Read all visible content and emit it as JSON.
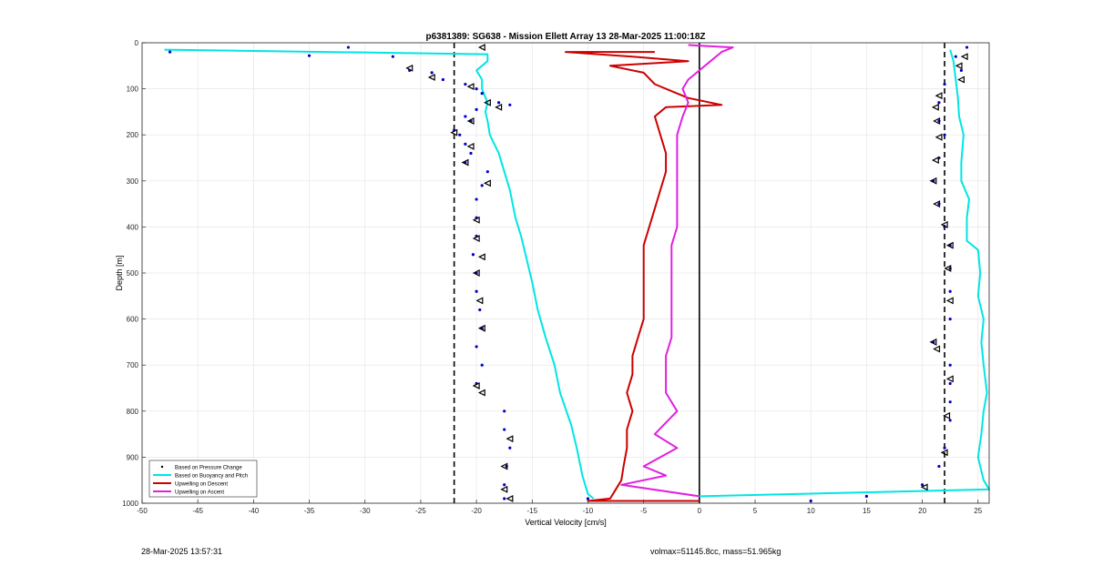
{
  "chart_data": {
    "type": "line",
    "title": "p6381389: SG638 - Mission Ellett Array 13 28-Mar-2025 11:00:18Z",
    "xlabel": "Vertical Velocity [cm/s]",
    "ylabel": "Depth [m]",
    "xlim": [
      -50,
      26
    ],
    "ylim": [
      0,
      1000
    ],
    "y_reversed": true,
    "grid": true,
    "xticks": [
      -50,
      -45,
      -40,
      -35,
      -30,
      -25,
      -20,
      -15,
      -10,
      -5,
      0,
      5,
      10,
      15,
      20,
      25
    ],
    "yticks": [
      0,
      100,
      200,
      300,
      400,
      500,
      600,
      700,
      800,
      900,
      1000
    ],
    "reference_lines": [
      {
        "x": -22,
        "style": "dashed",
        "color": "#000000"
      },
      {
        "x": 22,
        "style": "dashed",
        "color": "#000000"
      },
      {
        "x": 0,
        "style": "solid",
        "color": "#000000"
      }
    ],
    "legend": {
      "placement": "bottom-left",
      "entries": [
        {
          "label": "Based on Pressure Change",
          "color": "#000000",
          "kind": "dot"
        },
        {
          "label": "Based on Buoyancy and Pitch",
          "color": "#00e5e5",
          "kind": "line"
        },
        {
          "label": "Upwelling on Descent",
          "color": "#cc0000",
          "kind": "line"
        },
        {
          "label": "Upwelling on Ascent",
          "color": "#e020e0",
          "kind": "line"
        }
      ]
    },
    "series": [
      {
        "name": "Based on Buoyancy and Pitch",
        "color": "#00e5e5",
        "profile": "descent",
        "points": [
          [
            -48,
            15
          ],
          [
            -19,
            25
          ],
          [
            -19,
            40
          ],
          [
            -20,
            60
          ],
          [
            -19.5,
            80
          ],
          [
            -19.5,
            100
          ],
          [
            -19,
            130
          ],
          [
            -19.2,
            150
          ],
          [
            -19,
            170
          ],
          [
            -18.8,
            200
          ],
          [
            -18,
            240
          ],
          [
            -17.5,
            280
          ],
          [
            -17,
            320
          ],
          [
            -16.5,
            380
          ],
          [
            -16,
            420
          ],
          [
            -15.5,
            470
          ],
          [
            -15,
            520
          ],
          [
            -14.5,
            580
          ],
          [
            -13.8,
            640
          ],
          [
            -13,
            700
          ],
          [
            -12.5,
            760
          ],
          [
            -11.5,
            830
          ],
          [
            -11,
            880
          ],
          [
            -10.5,
            940
          ],
          [
            -10,
            980
          ],
          [
            -9.5,
            990
          ]
        ]
      },
      {
        "name": "Based on Buoyancy and Pitch",
        "color": "#00e5e5",
        "profile": "ascent",
        "points": [
          [
            0,
            985
          ],
          [
            26,
            970
          ],
          [
            25.5,
            950
          ],
          [
            25,
            900
          ],
          [
            25.3,
            850
          ],
          [
            25.5,
            800
          ],
          [
            25.8,
            760
          ],
          [
            25.5,
            700
          ],
          [
            25.3,
            650
          ],
          [
            25.5,
            600
          ],
          [
            25,
            550
          ],
          [
            25.2,
            500
          ],
          [
            25,
            450
          ],
          [
            24,
            430
          ],
          [
            24,
            380
          ],
          [
            24.2,
            340
          ],
          [
            23.5,
            300
          ],
          [
            23.5,
            260
          ],
          [
            23.7,
            200
          ],
          [
            23.3,
            160
          ],
          [
            23.2,
            120
          ],
          [
            23,
            80
          ],
          [
            22.8,
            40
          ],
          [
            22.5,
            15
          ]
        ]
      },
      {
        "name": "Upwelling on Descent",
        "color": "#cc0000",
        "points": [
          [
            -4,
            20
          ],
          [
            -12,
            20
          ],
          [
            -6,
            30
          ],
          [
            -1,
            40
          ],
          [
            -8,
            50
          ],
          [
            -5,
            65
          ],
          [
            -4,
            90
          ],
          [
            -2,
            110
          ],
          [
            -1,
            120
          ],
          [
            2,
            135
          ],
          [
            -3,
            140
          ],
          [
            -4,
            160
          ],
          [
            -3.5,
            200
          ],
          [
            -3,
            240
          ],
          [
            -3,
            280
          ],
          [
            -3.5,
            320
          ],
          [
            -4,
            360
          ],
          [
            -4.5,
            400
          ],
          [
            -5,
            440
          ],
          [
            -5,
            480
          ],
          [
            -5,
            520
          ],
          [
            -5,
            560
          ],
          [
            -5,
            600
          ],
          [
            -5.5,
            640
          ],
          [
            -6,
            680
          ],
          [
            -6,
            720
          ],
          [
            -6.5,
            760
          ],
          [
            -6,
            800
          ],
          [
            -6.5,
            840
          ],
          [
            -6.5,
            880
          ],
          [
            -6.8,
            920
          ],
          [
            -7,
            950
          ],
          [
            -7.5,
            970
          ],
          [
            -8,
            990
          ],
          [
            -10,
            995
          ],
          [
            0,
            995
          ]
        ]
      },
      {
        "name": "Upwelling on Ascent",
        "color": "#e020e0",
        "points": [
          [
            0,
            985
          ],
          [
            -7,
            960
          ],
          [
            -3,
            940
          ],
          [
            -5,
            920
          ],
          [
            -2,
            880
          ],
          [
            -4,
            850
          ],
          [
            -2,
            800
          ],
          [
            -3,
            760
          ],
          [
            -3,
            720
          ],
          [
            -3,
            680
          ],
          [
            -2.5,
            640
          ],
          [
            -2.5,
            600
          ],
          [
            -2.5,
            560
          ],
          [
            -2.5,
            520
          ],
          [
            -2.5,
            480
          ],
          [
            -2.5,
            440
          ],
          [
            -2,
            400
          ],
          [
            -2,
            360
          ],
          [
            -2,
            320
          ],
          [
            -2,
            280
          ],
          [
            -2,
            240
          ],
          [
            -2,
            200
          ],
          [
            -1.5,
            160
          ],
          [
            -1,
            130
          ],
          [
            -1.5,
            100
          ],
          [
            -1,
            80
          ],
          [
            0,
            60
          ],
          [
            1,
            40
          ],
          [
            2,
            20
          ],
          [
            3,
            10
          ],
          [
            -1,
            5
          ]
        ]
      }
    ],
    "pressure_change_points": {
      "name": "Based on Pressure Change",
      "color": "#0000cc",
      "descent": [
        [
          -47.5,
          20
        ],
        [
          -31.5,
          10
        ],
        [
          -35,
          28
        ],
        [
          -27.5,
          30
        ],
        [
          -26,
          60
        ],
        [
          -24,
          65
        ],
        [
          -23,
          80
        ],
        [
          -21,
          90
        ],
        [
          -20,
          100
        ],
        [
          -19.5,
          110
        ],
        [
          -18,
          130
        ],
        [
          -17,
          135
        ],
        [
          -20,
          145
        ],
        [
          -21,
          160
        ],
        [
          -20.5,
          170
        ],
        [
          -22,
          190
        ],
        [
          -21.5,
          200
        ],
        [
          -21,
          220
        ],
        [
          -20.5,
          240
        ],
        [
          -21,
          260
        ],
        [
          -19,
          280
        ],
        [
          -19.5,
          310
        ],
        [
          -20,
          340
        ],
        [
          -20,
          380
        ],
        [
          -20,
          420
        ],
        [
          -20.3,
          460
        ],
        [
          -20,
          500
        ],
        [
          -20,
          540
        ],
        [
          -19.7,
          580
        ],
        [
          -19.5,
          620
        ],
        [
          -20,
          660
        ],
        [
          -19.5,
          700
        ],
        [
          -20,
          740
        ],
        [
          -17.5,
          800
        ],
        [
          -17.5,
          840
        ],
        [
          -17,
          880
        ],
        [
          -17.3,
          920
        ],
        [
          -17.5,
          960
        ],
        [
          -17.5,
          990
        ],
        [
          -10,
          990
        ]
      ],
      "ascent": [
        [
          24,
          10
        ],
        [
          23,
          30
        ],
        [
          23.5,
          60
        ],
        [
          22,
          90
        ],
        [
          21.5,
          130
        ],
        [
          21.5,
          170
        ],
        [
          22,
          200
        ],
        [
          21.5,
          250
        ],
        [
          21,
          300
        ],
        [
          21.5,
          350
        ],
        [
          22,
          400
        ],
        [
          22.5,
          440
        ],
        [
          22.5,
          490
        ],
        [
          22.5,
          540
        ],
        [
          22.5,
          600
        ],
        [
          21,
          650
        ],
        [
          22.5,
          700
        ],
        [
          22.5,
          740
        ],
        [
          22.5,
          780
        ],
        [
          22.5,
          820
        ],
        [
          22,
          880
        ],
        [
          21.5,
          920
        ],
        [
          20,
          960
        ],
        [
          15,
          985
        ],
        [
          10,
          995
        ]
      ]
    },
    "triangle_markers": [
      [
        -19.5,
        10
      ],
      [
        -26,
        55
      ],
      [
        -24,
        75
      ],
      [
        -20.5,
        95
      ],
      [
        -19,
        130
      ],
      [
        -18,
        140
      ],
      [
        -20.5,
        170
      ],
      [
        -22,
        195
      ],
      [
        -20.5,
        225
      ],
      [
        -21,
        260
      ],
      [
        -19,
        305
      ],
      [
        -20,
        385
      ],
      [
        -20,
        425
      ],
      [
        -19.5,
        465
      ],
      [
        -20,
        500
      ],
      [
        -19.7,
        560
      ],
      [
        -19.5,
        620
      ],
      [
        -20,
        745
      ],
      [
        -19.5,
        760
      ],
      [
        -17,
        860
      ],
      [
        -17.5,
        920
      ],
      [
        -17.5,
        970
      ],
      [
        -17,
        990
      ],
      [
        23.8,
        30
      ],
      [
        23.3,
        50
      ],
      [
        23.5,
        80
      ],
      [
        21.5,
        115
      ],
      [
        21.2,
        140
      ],
      [
        21.3,
        170
      ],
      [
        21.5,
        205
      ],
      [
        21.2,
        255
      ],
      [
        21,
        300
      ],
      [
        21.3,
        350
      ],
      [
        22,
        395
      ],
      [
        22.5,
        440
      ],
      [
        22.3,
        490
      ],
      [
        22.5,
        560
      ],
      [
        21,
        650
      ],
      [
        21.3,
        665
      ],
      [
        22.5,
        730
      ],
      [
        22.2,
        810
      ],
      [
        22,
        890
      ],
      [
        20.2,
        965
      ]
    ]
  },
  "footer": {
    "left": "28-Mar-2025 13:57:31",
    "right": "volmax=51145.8cc, mass=51.965kg"
  }
}
